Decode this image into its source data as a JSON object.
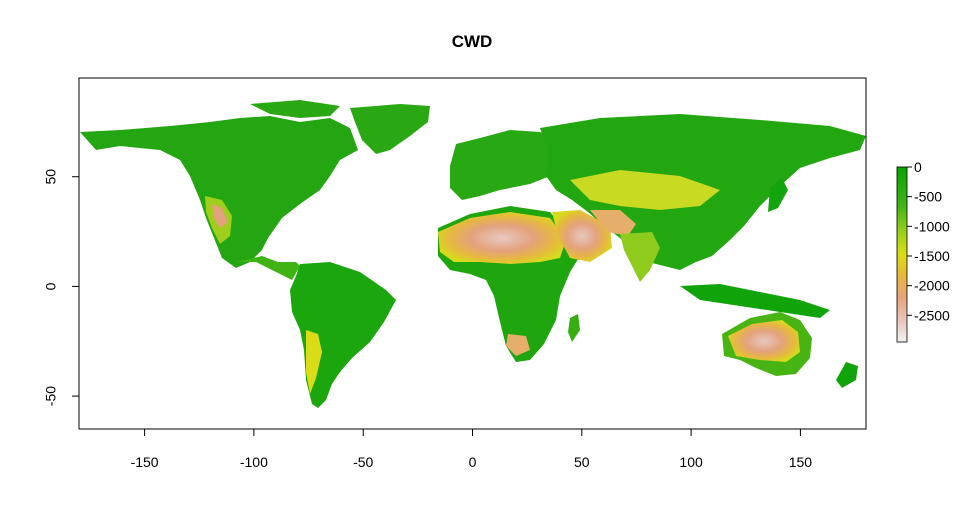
{
  "map": {
    "title": "CWD",
    "x_ticks": [
      {
        "value": -150,
        "label": "-150"
      },
      {
        "value": -100,
        "label": "-100"
      },
      {
        "value": -50,
        "label": "-50"
      },
      {
        "value": 0,
        "label": "0"
      },
      {
        "value": 50,
        "label": "50"
      },
      {
        "value": 100,
        "label": "100"
      },
      {
        "value": 150,
        "label": "150"
      }
    ],
    "y_ticks": [
      {
        "value": 50,
        "label": "50"
      },
      {
        "value": 0,
        "label": "0"
      },
      {
        "value": -50,
        "label": "-50"
      }
    ],
    "xlim": [
      -180,
      180
    ],
    "ylim": [
      -65,
      95
    ],
    "legend": {
      "placement": "right",
      "range": [
        -2950,
        0
      ],
      "ticks": [
        {
          "value": 0,
          "label": "0"
        },
        {
          "value": -500,
          "label": "-500"
        },
        {
          "value": -1000,
          "label": "-1000"
        },
        {
          "value": -1500,
          "label": "-1500"
        },
        {
          "value": -2000,
          "label": "-2000"
        },
        {
          "value": -2500,
          "label": "-2500"
        }
      ],
      "colors": [
        "#f2f2f2",
        "#e8b8a8",
        "#e5a37d",
        "#e8be3a",
        "#d8dc10",
        "#63c11a",
        "#1fa30e",
        "#00a600"
      ]
    }
  }
}
